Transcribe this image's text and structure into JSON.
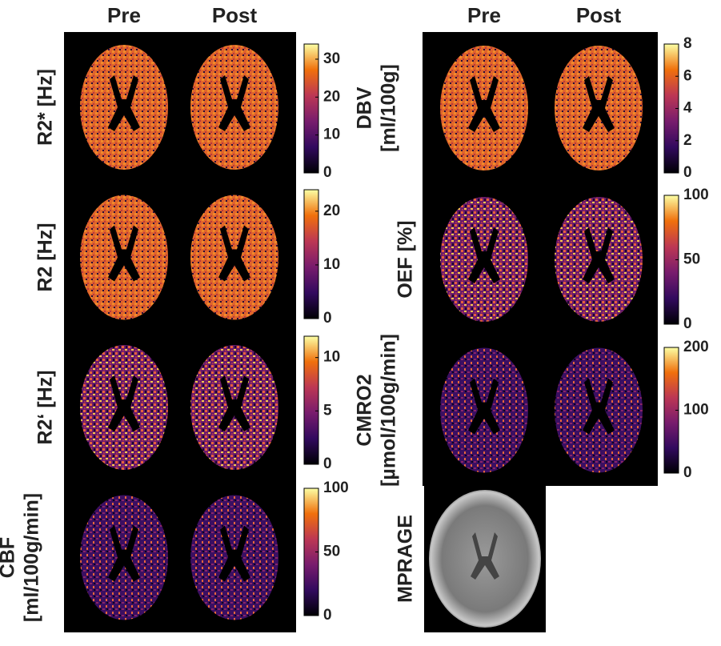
{
  "headers_left": [
    "Pre",
    "Post"
  ],
  "headers_right": [
    "Pre",
    "Post"
  ],
  "panels": [
    {
      "label": [
        "R2* [Hz]"
      ],
      "colorbar": {
        "lim": [
          0,
          34
        ],
        "ticks": [
          0,
          10,
          20,
          30
        ]
      }
    },
    {
      "label": [
        "R2 [Hz]"
      ],
      "colorbar": {
        "lim": [
          0,
          24
        ],
        "ticks": [
          0,
          10,
          20
        ]
      }
    },
    {
      "label": [
        "R2‘ [Hz]"
      ],
      "colorbar": {
        "lim": [
          0,
          12
        ],
        "ticks": [
          0,
          5,
          10
        ]
      }
    },
    {
      "label": [
        "CBF",
        "[ml/100g/min]"
      ],
      "colorbar": {
        "lim": [
          0,
          100
        ],
        "ticks": [
          0,
          50,
          100
        ]
      }
    },
    {
      "label": [
        "DBV",
        "[ml/100g]"
      ],
      "colorbar": {
        "lim": [
          0,
          8
        ],
        "ticks": [
          0,
          2,
          4,
          6,
          8
        ]
      }
    },
    {
      "label": [
        "OEF [%]"
      ],
      "colorbar": {
        "lim": [
          0,
          100
        ],
        "ticks": [
          0,
          50,
          100
        ]
      }
    },
    {
      "label": [
        "CMRO2",
        "[µmol/100g/min]"
      ],
      "colorbar": {
        "lim": [
          0,
          200
        ],
        "ticks": [
          0,
          100,
          200
        ]
      }
    }
  ],
  "mprage": {
    "label": [
      "MPRAGE"
    ]
  }
}
